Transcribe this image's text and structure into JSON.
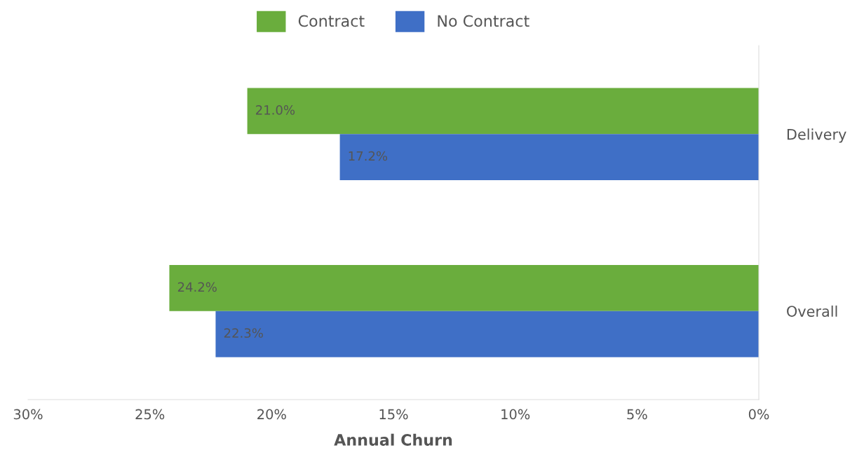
{
  "chart_data": {
    "type": "bar",
    "orientation": "horizontal",
    "xlabel": "Annual Churn",
    "categories": [
      "Delivery",
      "Overall"
    ],
    "series": [
      {
        "name": "Contract",
        "color": "#6aad3d",
        "values": [
          21.0,
          24.2
        ],
        "value_labels": [
          "21.0%",
          "24.2%"
        ]
      },
      {
        "name": "No Contract",
        "color": "#3f6fc6",
        "values": [
          17.2,
          22.3
        ],
        "value_labels": [
          "17.2%",
          "22.3%"
        ]
      }
    ],
    "xlim": [
      30,
      0
    ],
    "xticks": [
      {
        "value": 30,
        "label": "30%"
      },
      {
        "value": 25,
        "label": "25%"
      },
      {
        "value": 20,
        "label": "20%"
      },
      {
        "value": 15,
        "label": "15%"
      },
      {
        "value": 10,
        "label": "10%"
      },
      {
        "value": 5,
        "label": "5%"
      },
      {
        "value": 0,
        "label": "0%"
      }
    ],
    "grid": false,
    "legend": "top"
  }
}
